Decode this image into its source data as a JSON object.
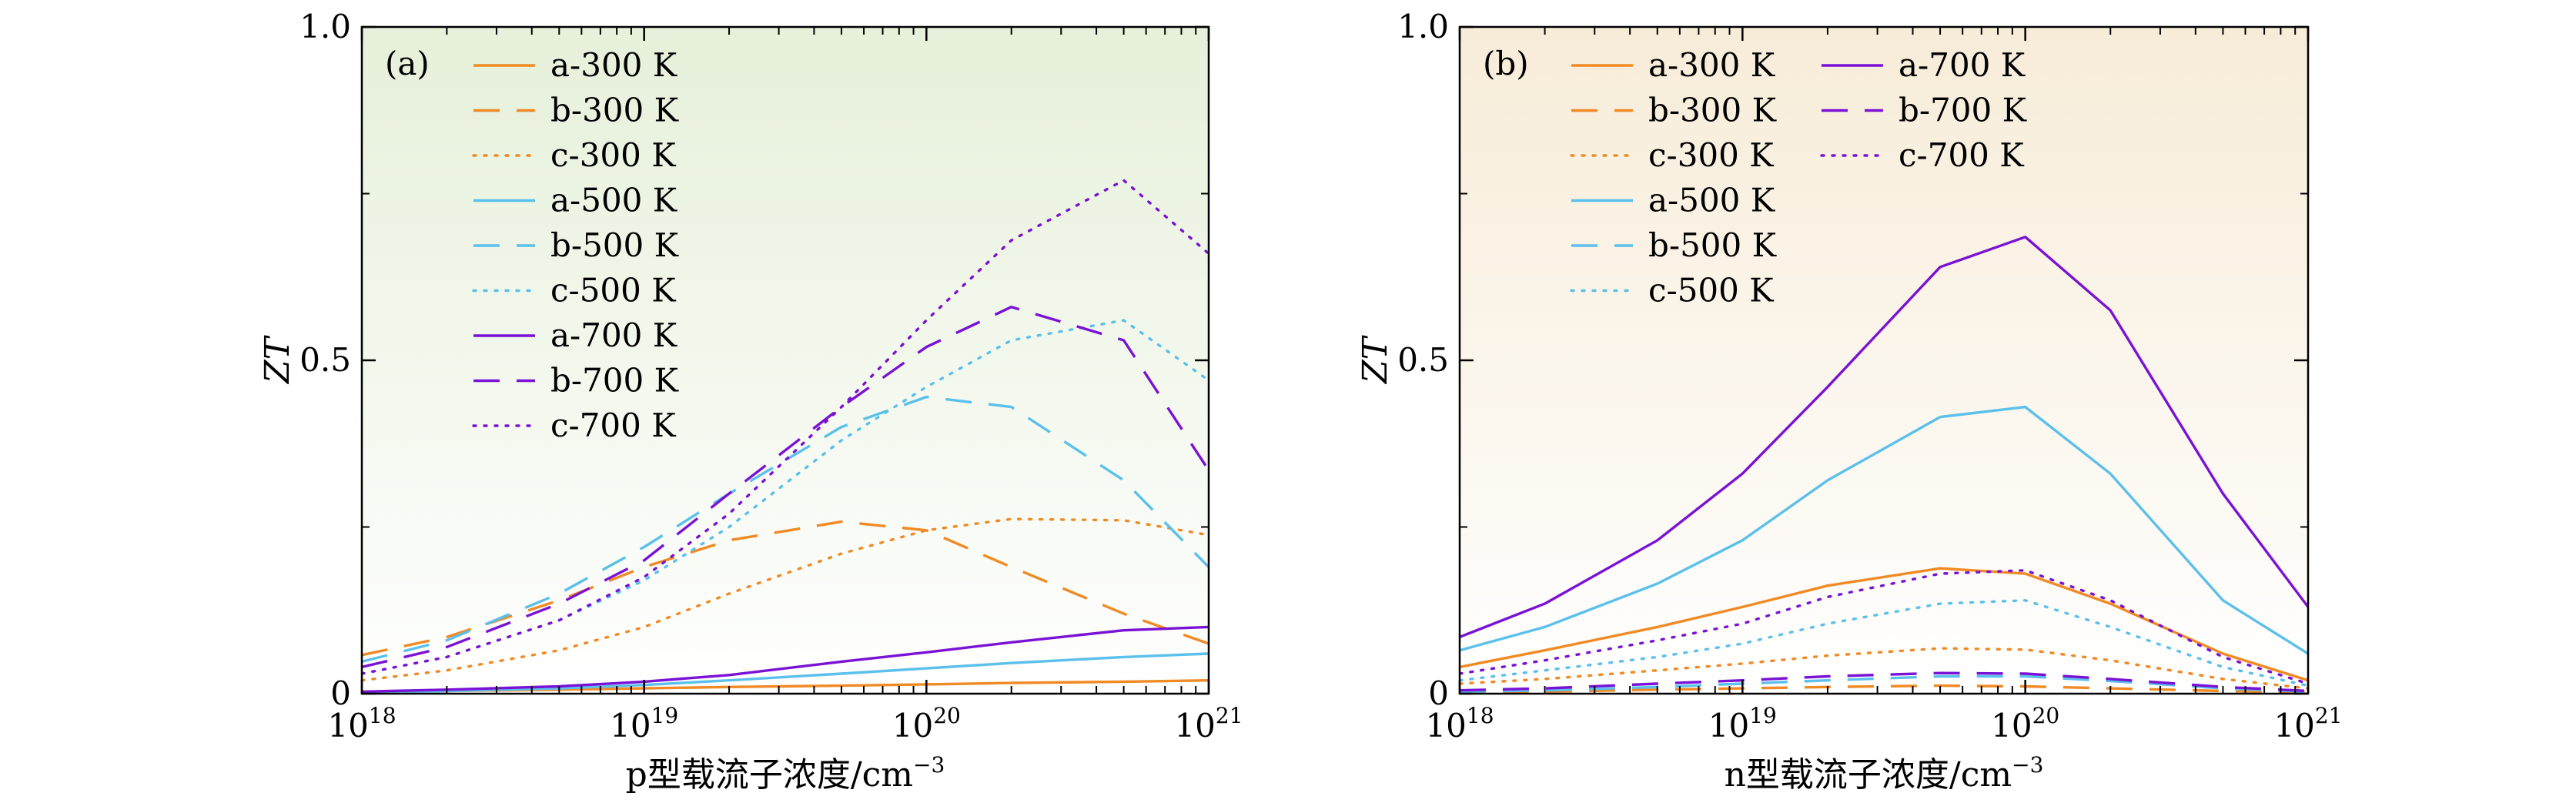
{
  "chart_data": [
    {
      "type": "line",
      "panel_label": "(a)",
      "xlabel": "p型载流子浓度/cm",
      "xlabel_sup": "−3",
      "ylabel": "ZT",
      "x_scale": "log",
      "xlim": [
        1e+18,
        1e+21
      ],
      "ylim": [
        0,
        1.0
      ],
      "x_ticks": [
        {
          "base": "10",
          "exp": "18"
        },
        {
          "base": "10",
          "exp": "19"
        },
        {
          "base": "10",
          "exp": "20"
        },
        {
          "base": "10",
          "exp": "21"
        }
      ],
      "y_ticks": [
        "0",
        "0.5",
        "1.0"
      ],
      "background": "#eef6e4",
      "legend_position": "top-left",
      "x": [
        1e+18,
        2e+18,
        5e+18,
        1e+19,
        2e+19,
        5e+19,
        1e+20,
        2e+20,
        5e+20,
        1e+21
      ],
      "series": [
        {
          "name": "a-300 K",
          "color": "#f08a24",
          "style": "solid",
          "values": [
            0.003,
            0.004,
            0.006,
            0.008,
            0.01,
            0.012,
            0.014,
            0.016,
            0.018,
            0.02
          ]
        },
        {
          "name": "b-300 K",
          "color": "#f08a24",
          "style": "dashed",
          "values": [
            0.058,
            0.085,
            0.14,
            0.19,
            0.23,
            0.258,
            0.245,
            0.19,
            0.12,
            0.075
          ]
        },
        {
          "name": "c-300 K",
          "color": "#f08a24",
          "style": "dotted",
          "values": [
            0.02,
            0.035,
            0.065,
            0.1,
            0.15,
            0.21,
            0.245,
            0.262,
            0.26,
            0.238
          ]
        },
        {
          "name": "a-500 K",
          "color": "#5bc0eb",
          "style": "solid",
          "values": [
            0.002,
            0.004,
            0.008,
            0.013,
            0.02,
            0.03,
            0.038,
            0.046,
            0.055,
            0.06
          ]
        },
        {
          "name": "b-500 K",
          "color": "#5bc0eb",
          "style": "dashed",
          "values": [
            0.048,
            0.08,
            0.15,
            0.22,
            0.3,
            0.4,
            0.445,
            0.43,
            0.32,
            0.19
          ]
        },
        {
          "name": "c-500 K",
          "color": "#5bc0eb",
          "style": "dotted",
          "values": [
            0.03,
            0.055,
            0.11,
            0.17,
            0.25,
            0.38,
            0.46,
            0.53,
            0.56,
            0.47
          ]
        },
        {
          "name": "a-700 K",
          "color": "#7a12d6",
          "style": "solid",
          "values": [
            0.003,
            0.006,
            0.011,
            0.018,
            0.028,
            0.048,
            0.062,
            0.077,
            0.095,
            0.1
          ]
        },
        {
          "name": "b-700 K",
          "color": "#7a12d6",
          "style": "dashed",
          "values": [
            0.04,
            0.07,
            0.135,
            0.2,
            0.3,
            0.43,
            0.52,
            0.58,
            0.53,
            0.335
          ]
        },
        {
          "name": "c-700 K",
          "color": "#7a12d6",
          "style": "dotted",
          "values": [
            0.03,
            0.055,
            0.11,
            0.175,
            0.27,
            0.43,
            0.56,
            0.68,
            0.77,
            0.66
          ]
        }
      ]
    },
    {
      "type": "line",
      "panel_label": "(b)",
      "xlabel": "n型载流子浓度/cm",
      "xlabel_sup": "−3",
      "ylabel": "ZT",
      "x_scale": "log",
      "xlim": [
        1e+18,
        1e+21
      ],
      "ylim": [
        0,
        1.0
      ],
      "x_ticks": [
        {
          "base": "10",
          "exp": "18"
        },
        {
          "base": "10",
          "exp": "19"
        },
        {
          "base": "10",
          "exp": "20"
        },
        {
          "base": "10",
          "exp": "21"
        }
      ],
      "y_ticks": [
        "0",
        "0.5",
        "1.0"
      ],
      "background": "#fbf3e4",
      "legend_position": "top-left",
      "x": [
        1e+18,
        2e+18,
        5e+18,
        1e+19,
        2e+19,
        5e+19,
        1e+20,
        2e+20,
        5e+20,
        1e+21
      ],
      "series": [
        {
          "name": "a-300 K",
          "color": "#f08a24",
          "style": "solid",
          "values": [
            0.04,
            0.065,
            0.1,
            0.13,
            0.162,
            0.188,
            0.18,
            0.135,
            0.06,
            0.02
          ]
        },
        {
          "name": "b-300 K",
          "color": "#f08a24",
          "style": "dashed",
          "values": [
            0.002,
            0.003,
            0.006,
            0.008,
            0.01,
            0.012,
            0.011,
            0.008,
            0.004,
            0.002
          ]
        },
        {
          "name": "c-300 K",
          "color": "#f08a24",
          "style": "dotted",
          "values": [
            0.015,
            0.022,
            0.035,
            0.045,
            0.057,
            0.068,
            0.066,
            0.05,
            0.022,
            0.008
          ]
        },
        {
          "name": "a-500 K",
          "color": "#5bc0eb",
          "style": "solid",
          "values": [
            0.065,
            0.1,
            0.165,
            0.23,
            0.32,
            0.415,
            0.43,
            0.33,
            0.14,
            0.06
          ]
        },
        {
          "name": "b-500 K",
          "color": "#5bc0eb",
          "style": "dashed",
          "values": [
            0.003,
            0.005,
            0.01,
            0.015,
            0.02,
            0.026,
            0.026,
            0.019,
            0.008,
            0.003
          ]
        },
        {
          "name": "c-500 K",
          "color": "#5bc0eb",
          "style": "dotted",
          "values": [
            0.02,
            0.035,
            0.055,
            0.075,
            0.105,
            0.135,
            0.14,
            0.1,
            0.04,
            0.012
          ]
        },
        {
          "name": "a-700 K",
          "color": "#7a12d6",
          "style": "solid",
          "values": [
            0.085,
            0.135,
            0.23,
            0.33,
            0.46,
            0.64,
            0.685,
            0.575,
            0.3,
            0.13
          ]
        },
        {
          "name": "b-700 K",
          "color": "#7a12d6",
          "style": "dashed",
          "values": [
            0.005,
            0.008,
            0.015,
            0.02,
            0.026,
            0.031,
            0.03,
            0.022,
            0.01,
            0.004
          ]
        },
        {
          "name": "c-700 K",
          "color": "#7a12d6",
          "style": "dotted",
          "values": [
            0.03,
            0.05,
            0.08,
            0.105,
            0.145,
            0.18,
            0.185,
            0.14,
            0.055,
            0.015
          ]
        }
      ]
    }
  ]
}
